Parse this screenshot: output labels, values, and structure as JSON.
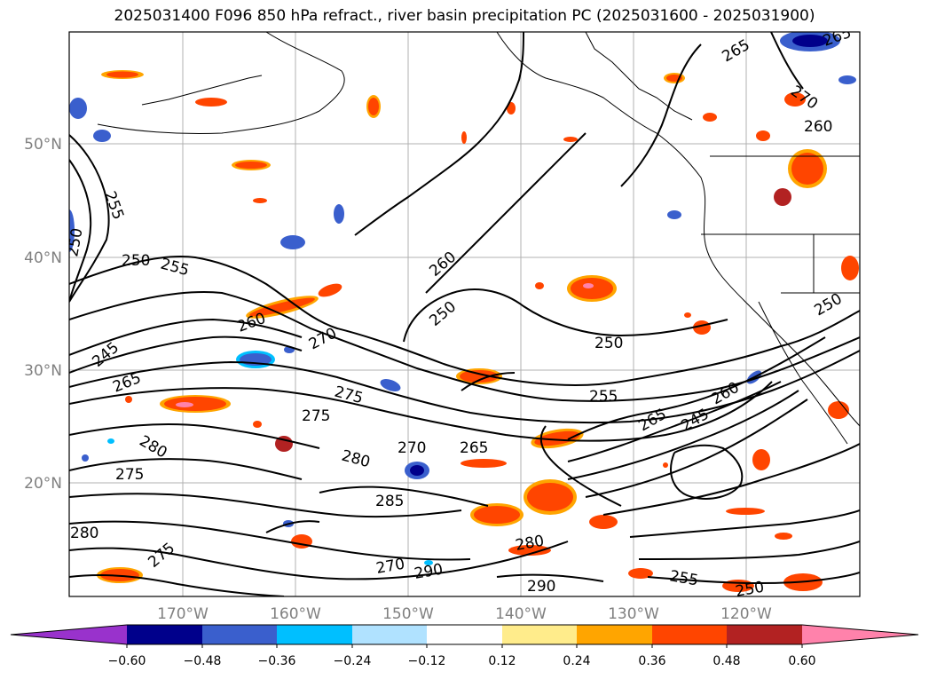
{
  "title": "2025031400 F096 850 hPa refract., river basin precipitation PC (2025031600 - 2025031900)",
  "map": {
    "lat_labels": [
      "50°N",
      "40°N",
      "30°N",
      "20°N"
    ],
    "lon_labels": [
      "170°W",
      "160°W",
      "150°W",
      "140°W",
      "130°W",
      "120°W"
    ],
    "contour_labels": [
      "255",
      "250",
      "255",
      "260",
      "250",
      "270",
      "245",
      "265",
      "260",
      "250",
      "255",
      "275",
      "275",
      "270",
      "265",
      "280",
      "285",
      "280",
      "270",
      "290",
      "290",
      "275",
      "280",
      "255",
      "250",
      "265",
      "245",
      "260",
      "250",
      "265",
      "270",
      "280",
      "275",
      "265",
      "260",
      "250"
    ]
  },
  "colorbar": {
    "colors": [
      "#9932cc",
      "#00008b",
      "#3a5fcd",
      "#00bfff",
      "#b0e2ff",
      "#ffffff",
      "#ffec8b",
      "#ffa500",
      "#ff4500",
      "#b22222",
      "#ff82ab"
    ],
    "tick_labels": [
      "−0.60",
      "−0.48",
      "−0.36",
      "−0.24",
      "−0.12",
      "0.12",
      "0.24",
      "0.36",
      "0.48",
      "0.60"
    ]
  }
}
